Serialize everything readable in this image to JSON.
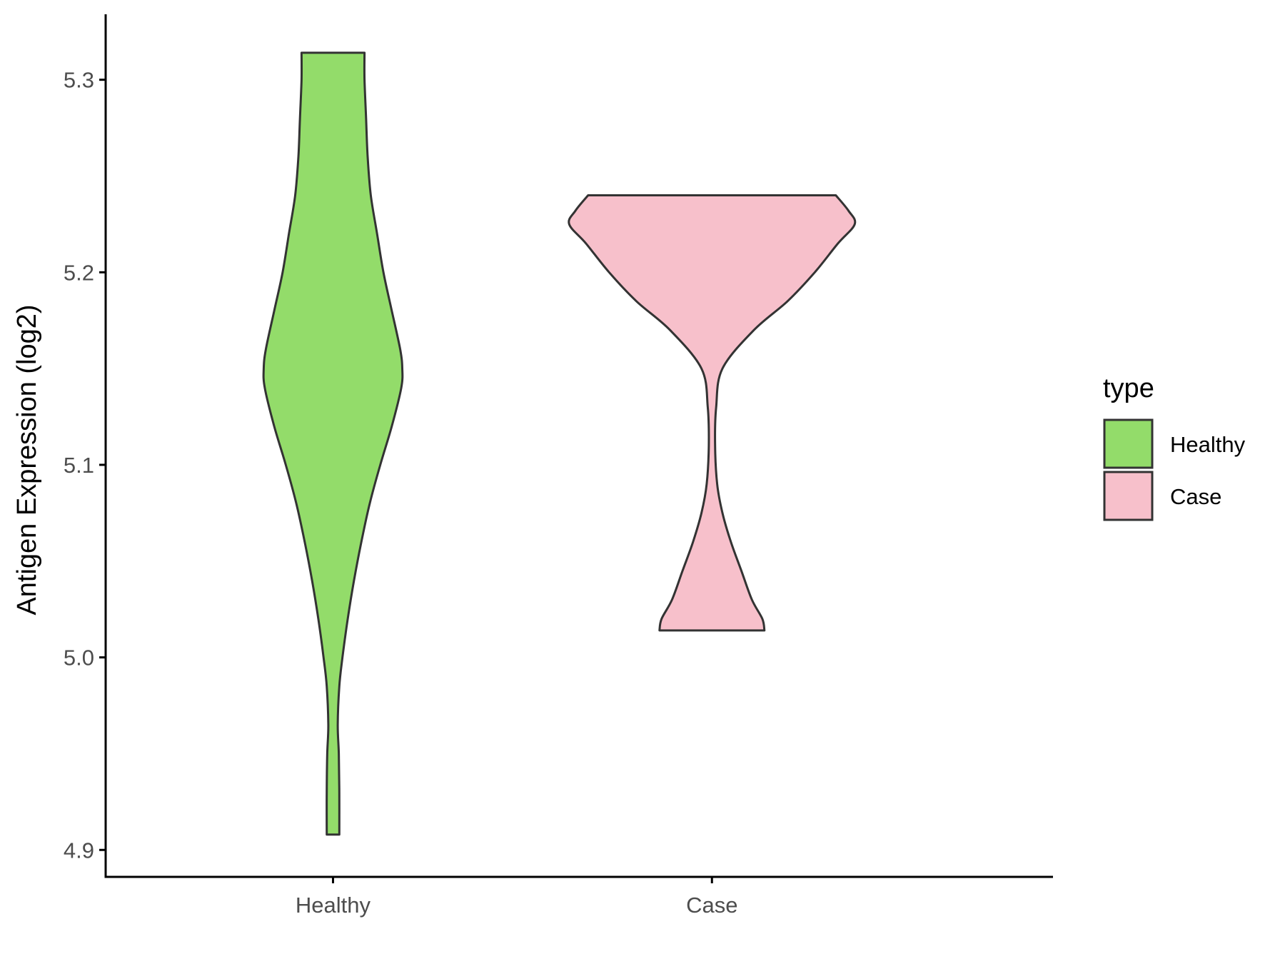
{
  "chart_data": {
    "type": "violin",
    "xlabel": "",
    "ylabel": "Antigen Expression (log2)",
    "ylim": [
      4.886,
      5.334
    ],
    "yticks": [
      "4.9",
      "5.0",
      "5.1",
      "5.2",
      "5.3"
    ],
    "categories": [
      "Healthy",
      "Case"
    ],
    "grid": false,
    "legend": {
      "title": "type",
      "position": "right",
      "entries": [
        {
          "label": "Healthy",
          "color": "#93dc6a"
        },
        {
          "label": "Case",
          "color": "#f7c0cb"
        }
      ]
    },
    "series": [
      {
        "category": "Healthy",
        "color": "#93dc6a",
        "min": 4.908,
        "max": 5.314,
        "density": [
          [
            4.908,
            0.06
          ],
          [
            4.93,
            0.06
          ],
          [
            4.95,
            0.055
          ],
          [
            4.965,
            0.045
          ],
          [
            4.985,
            0.06
          ],
          [
            5.0,
            0.09
          ],
          [
            5.02,
            0.14
          ],
          [
            5.04,
            0.2
          ],
          [
            5.06,
            0.27
          ],
          [
            5.08,
            0.35
          ],
          [
            5.1,
            0.45
          ],
          [
            5.12,
            0.56
          ],
          [
            5.14,
            0.65
          ],
          [
            5.15,
            0.66
          ],
          [
            5.16,
            0.64
          ],
          [
            5.18,
            0.56
          ],
          [
            5.2,
            0.48
          ],
          [
            5.22,
            0.42
          ],
          [
            5.24,
            0.36
          ],
          [
            5.26,
            0.33
          ],
          [
            5.28,
            0.315
          ],
          [
            5.3,
            0.3
          ],
          [
            5.314,
            0.3
          ]
        ]
      },
      {
        "category": "Case",
        "color": "#f7c0cb",
        "min": 5.014,
        "max": 5.24,
        "density": [
          [
            5.014,
            0.5
          ],
          [
            5.02,
            0.48
          ],
          [
            5.03,
            0.38
          ],
          [
            5.045,
            0.28
          ],
          [
            5.06,
            0.18
          ],
          [
            5.075,
            0.1
          ],
          [
            5.09,
            0.05
          ],
          [
            5.11,
            0.03
          ],
          [
            5.13,
            0.04
          ],
          [
            5.15,
            0.1
          ],
          [
            5.17,
            0.4
          ],
          [
            5.185,
            0.72
          ],
          [
            5.2,
            0.98
          ],
          [
            5.215,
            1.2
          ],
          [
            5.225,
            1.36
          ],
          [
            5.232,
            1.3
          ],
          [
            5.24,
            1.18
          ]
        ]
      }
    ]
  }
}
